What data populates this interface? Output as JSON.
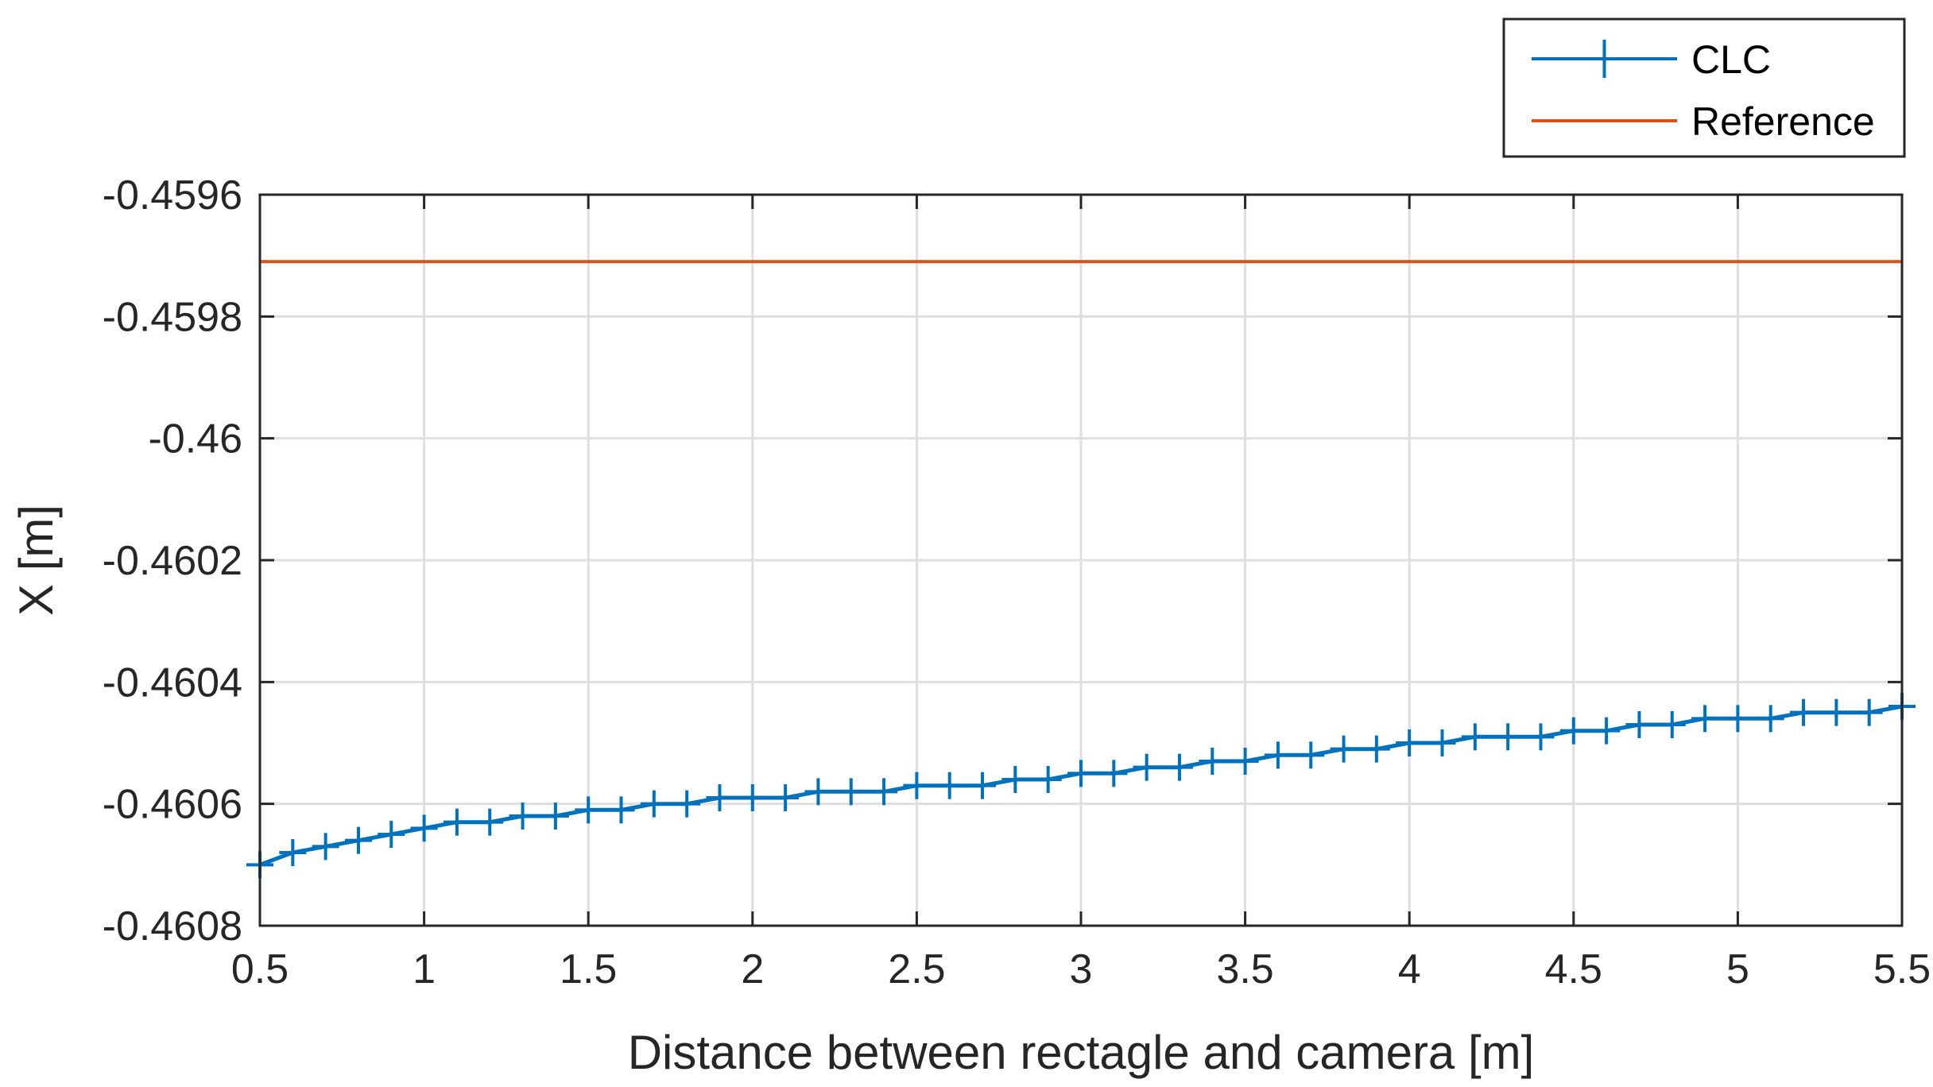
{
  "chart_data": {
    "type": "line",
    "title": "",
    "xlabel": "Distance between rectagle and camera [m]",
    "ylabel": "X [m]",
    "xlim": [
      0.5,
      5.5
    ],
    "ylim": [
      -0.4608,
      -0.4596
    ],
    "xticks": [
      0.5,
      1,
      1.5,
      2,
      2.5,
      3,
      3.5,
      4,
      4.5,
      5,
      5.5
    ],
    "xtick_labels": [
      "0.5",
      "1",
      "1.5",
      "2",
      "2.5",
      "3",
      "3.5",
      "4",
      "4.5",
      "5",
      "5.5"
    ],
    "yticks": [
      -0.4596,
      -0.4598,
      -0.46,
      -0.4602,
      -0.4604,
      -0.4606,
      -0.4608
    ],
    "ytick_labels": [
      "-0.4596",
      "-0.4598",
      "-0.46",
      "-0.4602",
      "-0.4604",
      "-0.4606",
      "-0.4608"
    ],
    "grid": true,
    "legend_position": "top-right, outside plot area",
    "series": [
      {
        "name": "CLC",
        "color": "#0072BD",
        "marker": "plus",
        "x": [
          0.5,
          0.6,
          0.7,
          0.8,
          0.9,
          1.0,
          1.1,
          1.2,
          1.3,
          1.4,
          1.5,
          1.6,
          1.7,
          1.8,
          1.9,
          2.0,
          2.1,
          2.2,
          2.3,
          2.4,
          2.5,
          2.6,
          2.7,
          2.8,
          2.9,
          3.0,
          3.1,
          3.2,
          3.3,
          3.4,
          3.5,
          3.6,
          3.7,
          3.8,
          3.9,
          4.0,
          4.1,
          4.2,
          4.3,
          4.4,
          4.5,
          4.6,
          4.7,
          4.8,
          4.9,
          5.0,
          5.1,
          5.2,
          5.3,
          5.4,
          5.5
        ],
        "y": [
          -0.4607,
          -0.46068,
          -0.46067,
          -0.46066,
          -0.46065,
          -0.46064,
          -0.46063,
          -0.46063,
          -0.46062,
          -0.46062,
          -0.46061,
          -0.46061,
          -0.4606,
          -0.4606,
          -0.46059,
          -0.46059,
          -0.46059,
          -0.46058,
          -0.46058,
          -0.46058,
          -0.46057,
          -0.46057,
          -0.46057,
          -0.46056,
          -0.46056,
          -0.46055,
          -0.46055,
          -0.46054,
          -0.46054,
          -0.46053,
          -0.46053,
          -0.46052,
          -0.46052,
          -0.46051,
          -0.46051,
          -0.4605,
          -0.4605,
          -0.46049,
          -0.46049,
          -0.46049,
          -0.46048,
          -0.46048,
          -0.46047,
          -0.46047,
          -0.46046,
          -0.46046,
          -0.46046,
          -0.46045,
          -0.46045,
          -0.46045,
          -0.46044
        ]
      },
      {
        "name": "Reference",
        "color": "#D95319",
        "marker": "none",
        "x": [
          0.5,
          5.5
        ],
        "y": [
          -0.45971,
          -0.45971
        ]
      }
    ]
  }
}
